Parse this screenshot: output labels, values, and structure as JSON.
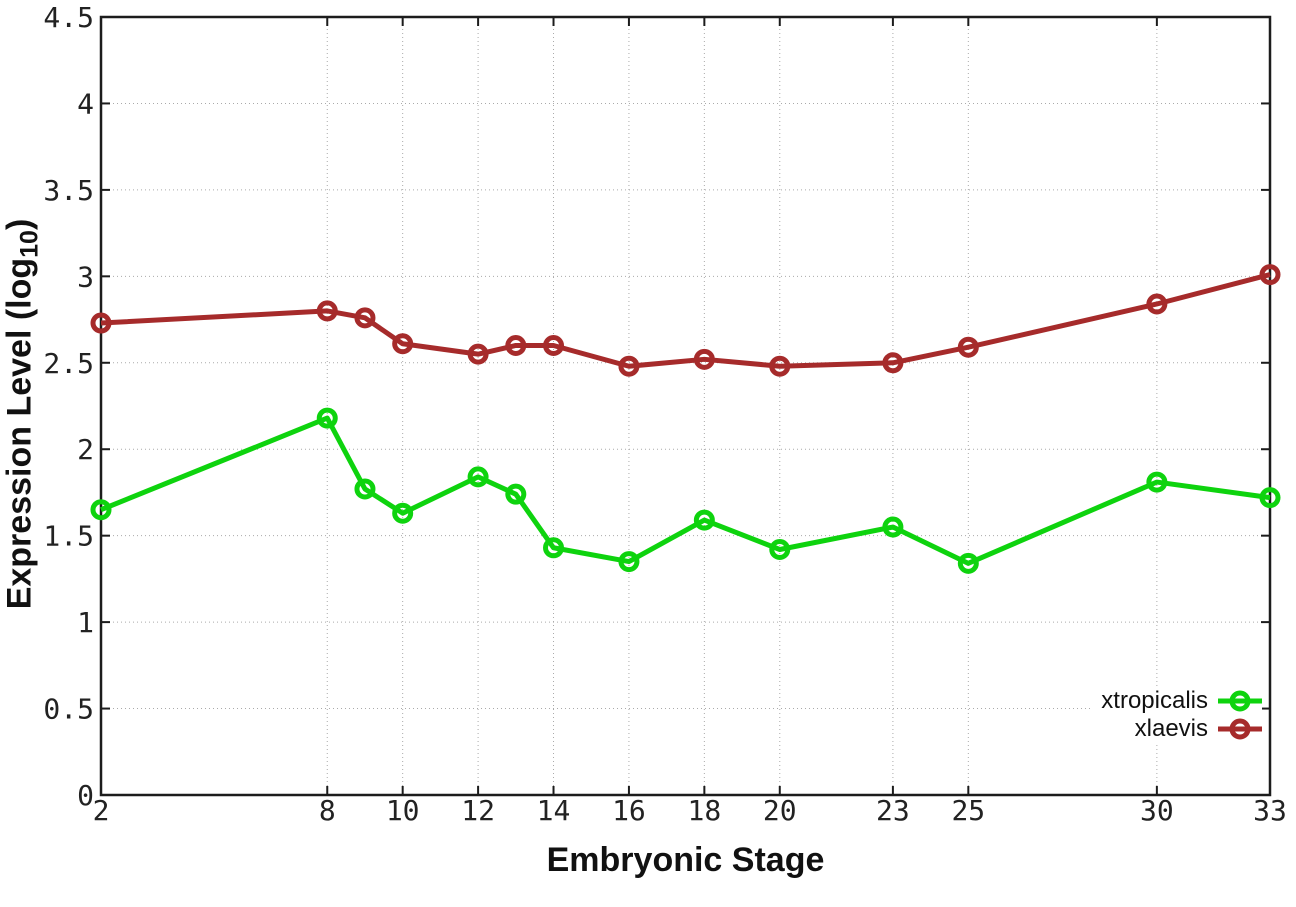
{
  "chart_data": {
    "type": "line",
    "xlabel": "Embryonic Stage",
    "ylabel": "Expression Level (log10)",
    "ylabel_parts": [
      "Expression Level (log",
      "10",
      ")"
    ],
    "xlim": [
      2,
      33
    ],
    "ylim": [
      0,
      4.5
    ],
    "grid": true,
    "legend_position": "inside-bottom-right",
    "x": [
      2,
      8,
      9,
      10,
      12,
      13,
      14,
      16,
      18,
      20,
      23,
      25,
      30,
      33
    ],
    "xticks": [
      2,
      8,
      10,
      12,
      14,
      16,
      18,
      20,
      23,
      25,
      30,
      33
    ],
    "xtick_labels": [
      "2",
      "8",
      "10",
      "12",
      "14",
      "16",
      "18",
      "20",
      "23",
      "25",
      "30",
      "33"
    ],
    "yticks": [
      0,
      0.5,
      1,
      1.5,
      2,
      2.5,
      3,
      3.5,
      4,
      4.5
    ],
    "ytick_labels": [
      "0",
      "0.5",
      "1",
      "1.5",
      "2",
      "2.5",
      "3",
      "3.5",
      "4",
      "4.5"
    ],
    "series": [
      {
        "name": "xtropicalis",
        "color": "#0ED30E",
        "marker": "open-circle",
        "values": [
          1.65,
          2.18,
          1.77,
          1.63,
          1.84,
          1.74,
          1.43,
          1.35,
          1.59,
          1.42,
          1.55,
          1.34,
          1.81,
          1.72
        ]
      },
      {
        "name": "xlaevis",
        "color": "#A62B2B",
        "marker": "open-circle",
        "values": [
          2.73,
          2.8,
          2.76,
          2.61,
          2.55,
          2.6,
          2.6,
          2.48,
          2.52,
          2.48,
          2.5,
          2.59,
          2.84,
          3.01
        ]
      }
    ],
    "style": {
      "background": "#ffffff",
      "axis_color": "#1c1c1c",
      "grid_color": "#aaaaaa",
      "tick_label_color": "#222222",
      "title_color": "#111111"
    }
  }
}
